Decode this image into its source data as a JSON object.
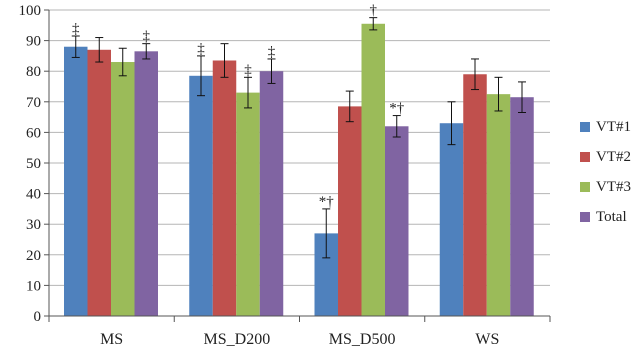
{
  "chart_data": {
    "type": "bar",
    "categories": [
      "MS",
      "MS_D200",
      "MS_D500",
      "WS"
    ],
    "ylim": [
      0,
      100
    ],
    "yticks": [
      0,
      10,
      20,
      30,
      40,
      50,
      60,
      70,
      80,
      90,
      100
    ],
    "grid": true,
    "legend_position": "right",
    "series": [
      {
        "name": "VT#1",
        "color": "#4F81BD",
        "values": [
          88,
          78.5,
          27,
          63
        ],
        "errors": [
          3.5,
          6.5,
          8,
          7
        ],
        "annotations": [
          "‡",
          "‡",
          "*†",
          ""
        ]
      },
      {
        "name": "VT#2",
        "color": "#C0504D",
        "values": [
          87,
          83.5,
          68.5,
          79
        ],
        "errors": [
          4,
          5.5,
          5,
          5
        ],
        "annotations": [
          "",
          "",
          "",
          ""
        ]
      },
      {
        "name": "VT#3",
        "color": "#9BBB59",
        "values": [
          83,
          73,
          95.5,
          72.5
        ],
        "errors": [
          4.5,
          5,
          2,
          5.5
        ],
        "annotations": [
          "",
          "‡",
          "†",
          ""
        ]
      },
      {
        "name": "Total",
        "color": "#8064A2",
        "values": [
          86.5,
          80,
          62,
          71.5
        ],
        "errors": [
          2.5,
          4,
          3.5,
          5
        ],
        "annotations": [
          "‡",
          "‡",
          "*†",
          ""
        ]
      }
    ]
  }
}
